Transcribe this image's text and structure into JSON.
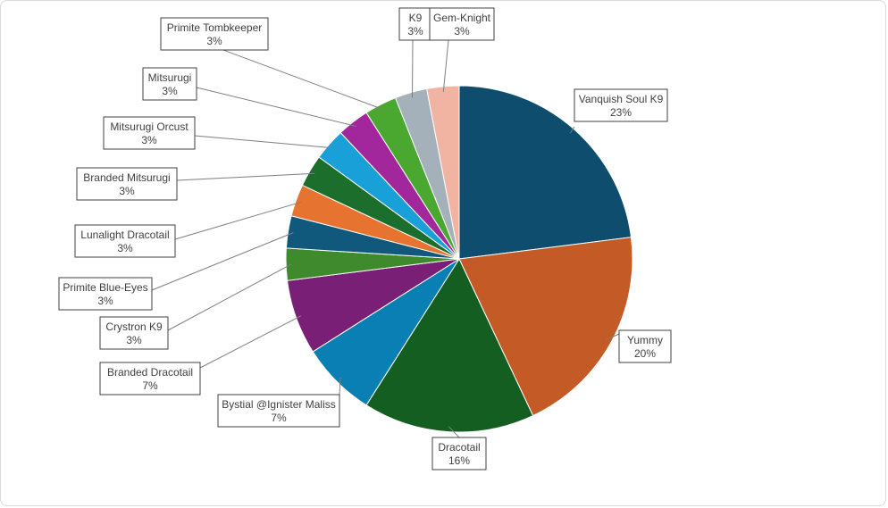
{
  "chart_data": {
    "type": "pie",
    "title": "",
    "categories": [
      "Vanquish Soul K9",
      "Yummy",
      "Dracotail",
      "Bystial @Ignister Maliss",
      "Branded Dracotail",
      "Crystron K9",
      "Primite Blue-Eyes",
      "Lunalight Dracotail",
      "Branded Mitsurugi",
      "Mitsurugi Orcust",
      "Mitsurugi",
      "Primite Tombkeeper",
      "K9",
      "Gem-Knight"
    ],
    "values": [
      23,
      20,
      16,
      7,
      7,
      3,
      3,
      3,
      3,
      3,
      3,
      3,
      3,
      3
    ],
    "percent_labels": [
      "23%",
      "20%",
      "16%",
      "7%",
      "7%",
      "3%",
      "3%",
      "3%",
      "3%",
      "3%",
      "3%",
      "3%",
      "3%",
      "3%"
    ],
    "colors": [
      "#0e4d6e",
      "#c45a26",
      "#135e20",
      "#0a7fb3",
      "#7a1f76",
      "#3f8a2c",
      "#11587d",
      "#e6732f",
      "#1c6e2c",
      "#1aa0d9",
      "#a3279c",
      "#4aa72f",
      "#a4b1bb",
      "#f1b4a3"
    ],
    "legend": "none",
    "label_style": "callout"
  }
}
